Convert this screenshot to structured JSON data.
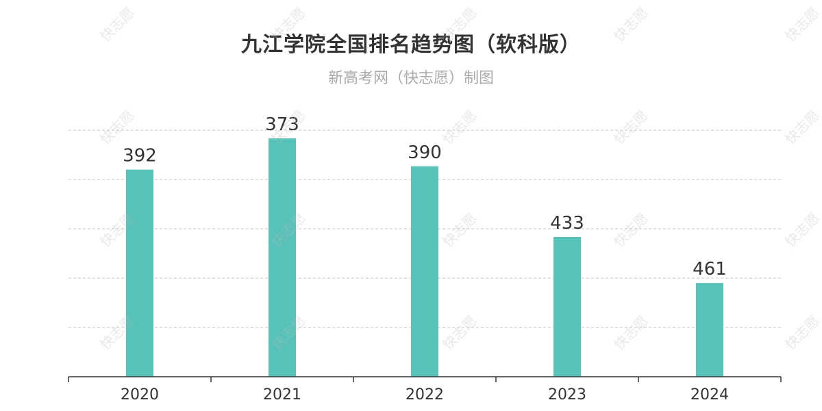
{
  "title": "九江学院全国排名趋势图（软科版）",
  "subtitle": "新高考网（快志愿）制图",
  "watermark_text": "快志愿",
  "colors": {
    "bar": "#56c2b8",
    "grid": "#c8c8c8",
    "axis": "#333333",
    "label": "#333333",
    "title": "#333333",
    "subtitle": "#aaaaaa"
  },
  "chart_data": {
    "type": "bar",
    "title": "九江学院全国排名趋势图（软科版）",
    "subtitle": "新高考网（快志愿）制图",
    "categories": [
      "2020",
      "2021",
      "2022",
      "2023",
      "2024"
    ],
    "values": [
      392,
      373,
      390,
      433,
      461
    ],
    "y_axis": "inverted rank (smaller rank drawn taller)",
    "y_labels_visible": false,
    "grid": true,
    "legend": "none",
    "data_labels": true
  }
}
